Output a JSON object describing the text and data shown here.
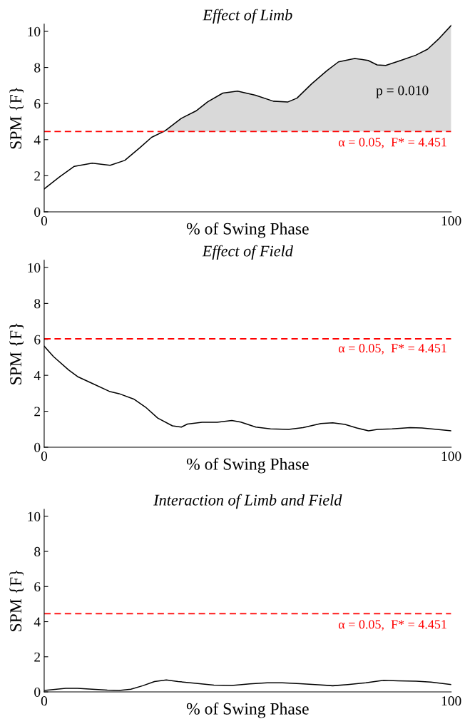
{
  "chart_data": [
    {
      "type": "line",
      "title": "Effect of Limb",
      "xlabel": "% of Swing Phase",
      "ylabel": "SPM {F}",
      "x": [
        0,
        3.8,
        7.4,
        11.8,
        16.2,
        19.8,
        23.5,
        26.4,
        29.7,
        33.7,
        37.3,
        40.2,
        43.9,
        47.5,
        51.9,
        56.3,
        59.9,
        62.1,
        65.7,
        69.4,
        72.3,
        76.3,
        79.6,
        81.8,
        83.9,
        87.6,
        91.3,
        94.2,
        97.1,
        100
      ],
      "series": [
        {
          "color": "#000000",
          "values": [
            1.27,
            1.94,
            2.52,
            2.7,
            2.58,
            2.85,
            3.55,
            4.13,
            4.49,
            5.18,
            5.59,
            6.1,
            6.58,
            6.69,
            6.46,
            6.13,
            6.09,
            6.3,
            7.09,
            7.81,
            8.31,
            8.5,
            8.39,
            8.14,
            8.11,
            8.39,
            8.68,
            9.01,
            9.62,
            10.33
          ],
          "lower": [
            null,
            null,
            null,
            null,
            null,
            null,
            null,
            null,
            4.451,
            4.451,
            4.451,
            4.451,
            4.451,
            4.451,
            4.451,
            4.451,
            4.451,
            4.451,
            4.451,
            4.451,
            4.451,
            4.451,
            4.451,
            4.451,
            4.451,
            4.451,
            4.451,
            4.451,
            4.451,
            4.451
          ],
          "upper": [
            null,
            null,
            null,
            null,
            null,
            null,
            null,
            null,
            4.49,
            5.18,
            5.59,
            6.1,
            6.58,
            6.69,
            6.46,
            6.13,
            6.09,
            6.3,
            7.09,
            7.81,
            8.31,
            8.5,
            8.39,
            8.14,
            8.11,
            8.39,
            8.68,
            9.01,
            9.62,
            10.33
          ]
        }
      ],
      "xlim": [
        0,
        100
      ],
      "ylim": [
        0,
        10.4
      ],
      "xticks": [
        0,
        100
      ],
      "yticks": [
        0,
        2,
        4,
        6,
        8,
        10
      ],
      "ref_lines": [
        {
          "axis": "y",
          "value": 4.451,
          "label": "α = 0.05,  F* = 4.451",
          "color": "#ff0000",
          "line_style": "dashed"
        }
      ],
      "annotations": [
        "p = 0.010"
      ]
    },
    {
      "type": "line",
      "title": "Effect of Field",
      "xlabel": "% of Swing Phase",
      "ylabel": "SPM {F}",
      "x": [
        0,
        2.3,
        6.0,
        8.2,
        11.8,
        16.2,
        18.4,
        22.0,
        24.9,
        27.9,
        31.5,
        33.7,
        35.2,
        38.8,
        42.5,
        46.1,
        48.3,
        52.0,
        55.6,
        60.0,
        63.6,
        68.0,
        70.9,
        73.9,
        76.8,
        79.7,
        81.9,
        85.5,
        89.9,
        92.8,
        96.5,
        100
      ],
      "series": [
        {
          "color": "#000000",
          "values": [
            5.62,
            5.04,
            4.3,
            3.93,
            3.55,
            3.09,
            2.98,
            2.68,
            2.23,
            1.62,
            1.19,
            1.12,
            1.29,
            1.39,
            1.39,
            1.49,
            1.4,
            1.12,
            1.02,
            0.99,
            1.09,
            1.32,
            1.36,
            1.27,
            1.07,
            0.91,
            0.99,
            1.02,
            1.09,
            1.07,
            0.99,
            0.91
          ]
        }
      ],
      "xlim": [
        0,
        100
      ],
      "ylim": [
        0,
        10.4
      ],
      "xticks": [
        0,
        100
      ],
      "yticks": [
        0,
        2,
        4,
        6,
        8,
        10
      ],
      "ref_lines": [
        {
          "axis": "y",
          "value": 6.03,
          "color": "#ff0000",
          "line_style": "dashed"
        }
      ],
      "annotations": [
        "α = 0.05,  F* = 4.451"
      ]
    },
    {
      "type": "line",
      "title": "Interaction of Limb and Field",
      "xlabel": "% of Swing Phase",
      "ylabel": "SPM {F}",
      "x": [
        0,
        5.3,
        8.2,
        11.8,
        15.5,
        18.4,
        21.3,
        24.2,
        27.1,
        30.0,
        32.9,
        37.3,
        41.7,
        46.1,
        50.5,
        54.8,
        58.5,
        62.9,
        67.3,
        70.9,
        74.6,
        79.0,
        83.4,
        87.0,
        91.4,
        95.0,
        100
      ],
      "series": [
        {
          "color": "#000000",
          "values": [
            0.08,
            0.2,
            0.2,
            0.15,
            0.1,
            0.08,
            0.15,
            0.35,
            0.59,
            0.68,
            0.59,
            0.49,
            0.39,
            0.37,
            0.46,
            0.52,
            0.52,
            0.47,
            0.41,
            0.35,
            0.42,
            0.52,
            0.66,
            0.63,
            0.61,
            0.56,
            0.42
          ]
        }
      ],
      "xlim": [
        0,
        100
      ],
      "ylim": [
        0,
        10.4
      ],
      "xticks": [
        0,
        100
      ],
      "yticks": [
        0,
        2,
        4,
        6,
        8,
        10
      ],
      "ref_lines": [
        {
          "axis": "y",
          "value": 4.451,
          "label": "α = 0.05,  F* = 4.451",
          "color": "#ff0000",
          "line_style": "dashed"
        }
      ]
    }
  ]
}
